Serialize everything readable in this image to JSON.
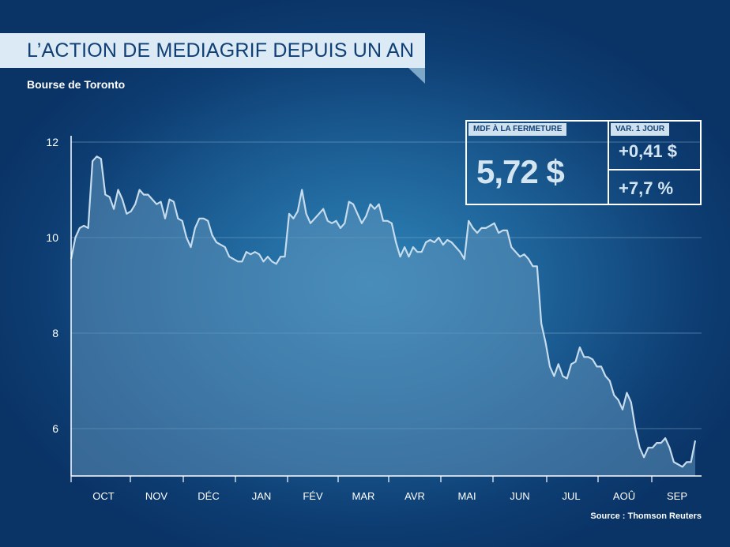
{
  "chart_data": {
    "type": "area",
    "title": "L’ACTION DE MEDIAGRIF DEPUIS UN AN",
    "subtitle": "Bourse de Toronto",
    "source": "Source : Thomson Reuters",
    "xlabel": "",
    "ylabel": "",
    "ylim": [
      5,
      12
    ],
    "yticks": [
      6,
      8,
      10,
      12
    ],
    "grid": true,
    "months": [
      "OCT",
      "NOV",
      "DÉC",
      "JAN",
      "FÉV",
      "MAR",
      "AVR",
      "MAI",
      "JUN",
      "JUL",
      "AOÛ",
      "SEP"
    ],
    "values": [
      9.55,
      10.0,
      10.2,
      10.25,
      10.2,
      11.6,
      11.7,
      11.65,
      10.9,
      10.85,
      10.6,
      11.0,
      10.8,
      10.5,
      10.55,
      10.7,
      11.0,
      10.9,
      10.9,
      10.8,
      10.7,
      10.75,
      10.4,
      10.8,
      10.75,
      10.4,
      10.35,
      10.0,
      9.8,
      10.2,
      10.4,
      10.4,
      10.35,
      10.05,
      9.9,
      9.85,
      9.8,
      9.6,
      9.55,
      9.5,
      9.5,
      9.7,
      9.65,
      9.7,
      9.65,
      9.5,
      9.6,
      9.5,
      9.45,
      9.6,
      9.6,
      10.5,
      10.4,
      10.55,
      11.0,
      10.5,
      10.3,
      10.4,
      10.5,
      10.6,
      10.35,
      10.3,
      10.35,
      10.2,
      10.3,
      10.75,
      10.7,
      10.5,
      10.3,
      10.45,
      10.7,
      10.6,
      10.7,
      10.35,
      10.35,
      10.3,
      9.9,
      9.6,
      9.8,
      9.6,
      9.8,
      9.7,
      9.7,
      9.9,
      9.95,
      9.9,
      10.0,
      9.85,
      9.95,
      9.9,
      9.8,
      9.7,
      9.55,
      10.35,
      10.2,
      10.1,
      10.2,
      10.2,
      10.25,
      10.3,
      10.1,
      10.15,
      10.15,
      9.8,
      9.7,
      9.6,
      9.65,
      9.55,
      9.4,
      9.4,
      8.2,
      7.8,
      7.3,
      7.1,
      7.35,
      7.1,
      7.05,
      7.35,
      7.4,
      7.7,
      7.5,
      7.5,
      7.45,
      7.3,
      7.3,
      7.1,
      7.0,
      6.7,
      6.6,
      6.4,
      6.75,
      6.55,
      6.0,
      5.6,
      5.4,
      5.6,
      5.6,
      5.7,
      5.7,
      5.8,
      5.6,
      5.3,
      5.25,
      5.2,
      5.3,
      5.3,
      5.75
    ]
  },
  "info_box": {
    "close_label": "MDF À LA FERMETURE",
    "close_value": "5,72 $",
    "change_label": "VAR. 1 JOUR",
    "change_dollar": "+0,41 $",
    "change_pct": "+7,7 %"
  },
  "colors": {
    "line": "#c6dcec",
    "area": "#5f93bb",
    "banner_bg": "#dbeaf4",
    "banner_text": "#0f3f74",
    "grid": "#7aa6c8"
  }
}
